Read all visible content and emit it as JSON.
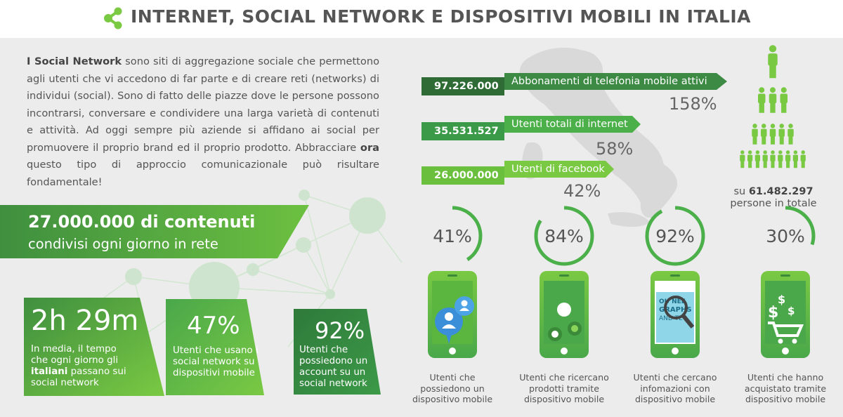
{
  "header": {
    "title": "INTERNET, SOCIAL NETWORK E DISPOSITIVI MOBILI IN ITALIA",
    "icon": "share-icon"
  },
  "intro": {
    "p1_bold": "I Social Network",
    "p1_text": " sono siti di aggregazione sociale che permettono agli utenti che vi accedono di far parte e di creare reti (networks) di individui (social). Sono di fatto delle piazze dove le persone possono incontrarsi, conversare e condividere una larga varietà di contenuti e attività. Ad oggi sempre più aziende si affidano ai social per promuovere il proprio brand ed il proprio prodotto. Abbracciare ",
    "p1_bold2": "ora",
    "p1_text2": " questo tipo di approccio comunicazionale può risultare fondamentale!"
  },
  "banner": {
    "line1": "27.000.000 di contenuti",
    "line2": "condivisi ogni giorno in rete"
  },
  "stats": [
    {
      "value": "2h 29m",
      "desc_pre": "In media, il tempo che ogni giorno gli ",
      "desc_bold": "italiani",
      "desc_post": " passano sui social network"
    },
    {
      "value": "47%",
      "desc": "Utenti che usano i social network su dispositivi mobile"
    },
    {
      "value": "92%",
      "desc": "Utenti che possiedono un account su un social network"
    }
  ],
  "bars": [
    {
      "number": "97.226.000",
      "label": "Abbonamenti di telefonia mobile attivi",
      "percent": "158%"
    },
    {
      "number": "35.531.527",
      "label": "Utenti totali di internet",
      "percent": "58%"
    },
    {
      "number": "26.000.000",
      "label": "Utenti di facebook",
      "percent": "42%"
    }
  ],
  "population": {
    "prefix": "su ",
    "value": "61.482.297",
    "suffix": "persone in totale"
  },
  "phones": [
    {
      "percent": "41%",
      "fraction": 0.41,
      "icon": "users-chat-icon",
      "caption": "Utenti che possiedono un dispositivo mobile"
    },
    {
      "percent": "84%",
      "fraction": 0.84,
      "icon": "apple-icon",
      "caption": "Utenti che ricercano prodotti tramite dispositivo mobile"
    },
    {
      "percent": "92%",
      "fraction": 0.92,
      "icon": "magnifier-icon",
      "caption": "Utenti che cercano infomazioni con dispositivo mobile"
    },
    {
      "percent": "30%",
      "fraction": 0.3,
      "icon": "shopping-cart-icon",
      "caption": "Utenti che hanno acquistato tramite dispositivo mobile"
    }
  ],
  "phone_screen_text": "ENT\nOU NEE\nGRAPHS\nAND TE",
  "colors": {
    "dark_green": "#3a7a3a",
    "mid_green": "#4aa84a",
    "light_green": "#7ac943",
    "text_gray": "#555555"
  }
}
